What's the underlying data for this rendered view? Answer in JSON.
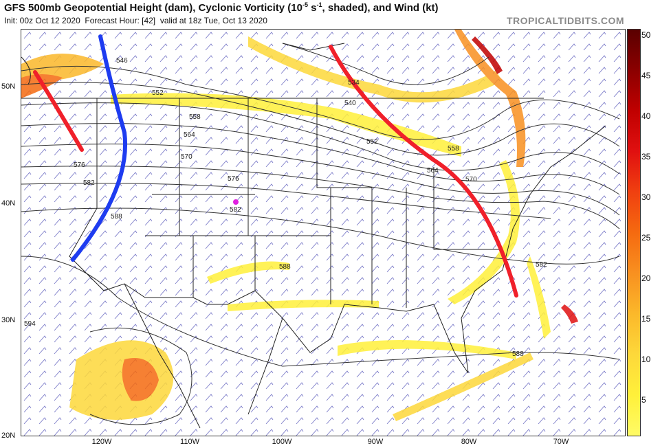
{
  "header": {
    "title": "GFS 500mb Geopotential Height (dam), Cyclonic Vorticity (10",
    "title_sup": "-5",
    "title_unit": " s",
    "title_sup2": "-1",
    "title_rest": ", shaded), and Wind (kt)",
    "init": "Init: 00z Oct 12 2020",
    "forecast": "Forecast Hour: [42]",
    "valid": "valid at 18z Tue, Oct 13 2020",
    "brand": "TROPICALTIDBITS.COM"
  },
  "axes": {
    "lat_labels": [
      "50N",
      "40N",
      "30N",
      "20N"
    ],
    "lon_labels": [
      "120W",
      "110W",
      "100W",
      "90W",
      "80W",
      "70W"
    ]
  },
  "colorbar": {
    "ticks": [
      "50",
      "45",
      "40",
      "35",
      "30",
      "25",
      "20",
      "15",
      "10",
      "5"
    ],
    "colors": [
      "#5a0000",
      "#8b0000",
      "#c00000",
      "#e01010",
      "#f04010",
      "#f56a10",
      "#f89020",
      "#fbb82a",
      "#fdd83a",
      "#fff03a",
      "#fffb66"
    ]
  },
  "contours": {
    "labels": [
      "546",
      "552",
      "558",
      "564",
      "570",
      "576",
      "582",
      "588",
      "594",
      "540",
      "534",
      "552",
      "558",
      "564",
      "570",
      "576",
      "582",
      "588",
      "582",
      "588"
    ]
  },
  "annotations": {
    "trough_color": "#1e3cf0",
    "ridge_color": "#f0202a",
    "low_marker_color": "#e020e0"
  }
}
